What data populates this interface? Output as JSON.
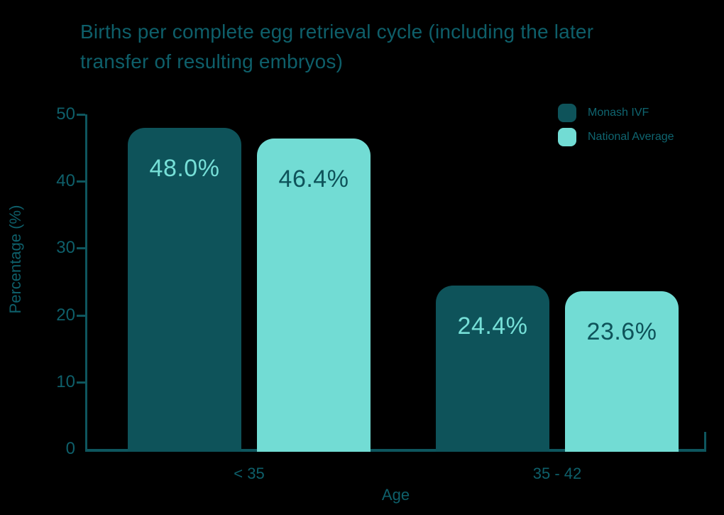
{
  "header": {
    "title_lines": [
      "Births per complete egg retrieval cycle (including the later",
      "transfer of resulting embryos)"
    ]
  },
  "colors": {
    "background": "#000000",
    "title_text": "#0E5F6A",
    "axis_text": "#0E5F6A",
    "legend_text": "#0F6570",
    "axis_line": "#0E565E"
  },
  "chart_data": {
    "type": "bar",
    "title": "Births per complete egg retrieval cycle (including the later transfer of resulting embryos)",
    "categories": [
      "< 35",
      "35 - 42"
    ],
    "series": [
      {
        "name": "Monash IVF",
        "color": "#0E535A",
        "label_color": "#76DFD7",
        "values": [
          48.0,
          24.4
        ],
        "labels": [
          "48.0%",
          "24.4%"
        ]
      },
      {
        "name": "National Average",
        "color": "#72DCD4",
        "label_color": "#0E535A",
        "values": [
          46.4,
          23.6
        ],
        "labels": [
          "46.4%",
          "23.6%"
        ]
      }
    ],
    "xlabel": "Age",
    "ylabel": "Percentage (%)",
    "ylim": [
      0,
      50
    ],
    "yticks": [
      0,
      10,
      20,
      30,
      40,
      50
    ],
    "grid": false,
    "legend_position": "top-right"
  }
}
